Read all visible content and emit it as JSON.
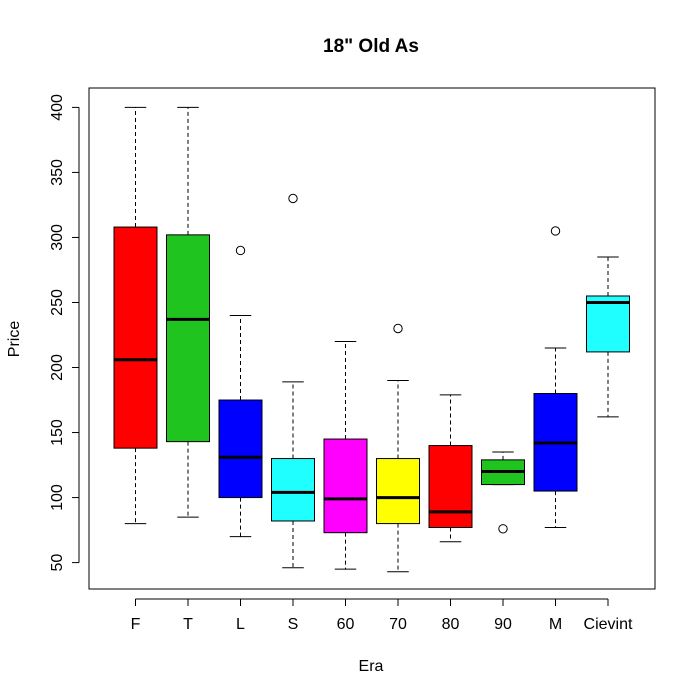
{
  "chart_data": {
    "type": "box",
    "title": "18\" Old As",
    "xlabel": "Era",
    "ylabel": "Price",
    "ylim": [
      30,
      420
    ],
    "yticks": [
      50,
      100,
      150,
      200,
      250,
      300,
      350,
      400
    ],
    "grid": false,
    "legend": "none",
    "categories": [
      "F",
      "T",
      "L",
      "S",
      "60",
      "70",
      "80",
      "90",
      "M",
      "Cievint"
    ],
    "colors": [
      "#ff0000",
      "#1fc41f",
      "#0000ff",
      "#1fffff",
      "#ff00ff",
      "#ffff00",
      "#ff0000",
      "#1fc41f",
      "#0000ff",
      "#1fffff"
    ],
    "boxes": [
      {
        "category": "F",
        "whisker_low": 80,
        "q1": 138,
        "median": 206,
        "q3": 308,
        "whisker_high": 400,
        "outliers": []
      },
      {
        "category": "T",
        "whisker_low": 85,
        "q1": 143,
        "median": 237,
        "q3": 302,
        "whisker_high": 400,
        "outliers": []
      },
      {
        "category": "L",
        "whisker_low": 70,
        "q1": 100,
        "median": 131,
        "q3": 175,
        "whisker_high": 240,
        "outliers": [
          290
        ]
      },
      {
        "category": "S",
        "whisker_low": 46,
        "q1": 82,
        "median": 104,
        "q3": 130,
        "whisker_high": 189,
        "outliers": [
          330
        ]
      },
      {
        "category": "60",
        "whisker_low": 45,
        "q1": 73,
        "median": 99,
        "q3": 145,
        "whisker_high": 220,
        "outliers": []
      },
      {
        "category": "70",
        "whisker_low": 43,
        "q1": 80,
        "median": 100,
        "q3": 130,
        "whisker_high": 190,
        "outliers": [
          230
        ]
      },
      {
        "category": "80",
        "whisker_low": 66,
        "q1": 77,
        "median": 89,
        "q3": 140,
        "whisker_high": 179,
        "outliers": []
      },
      {
        "category": "90",
        "whisker_low": 110,
        "q1": 110,
        "median": 120,
        "q3": 129,
        "whisker_high": 135,
        "outliers": [
          76
        ]
      },
      {
        "category": "M",
        "whisker_low": 77,
        "q1": 105,
        "median": 142,
        "q3": 180,
        "whisker_high": 215,
        "outliers": [
          305
        ]
      },
      {
        "category": "Cievint",
        "whisker_low": 162,
        "q1": 212,
        "median": 250,
        "q3": 255,
        "whisker_high": 285,
        "outliers": []
      }
    ]
  }
}
